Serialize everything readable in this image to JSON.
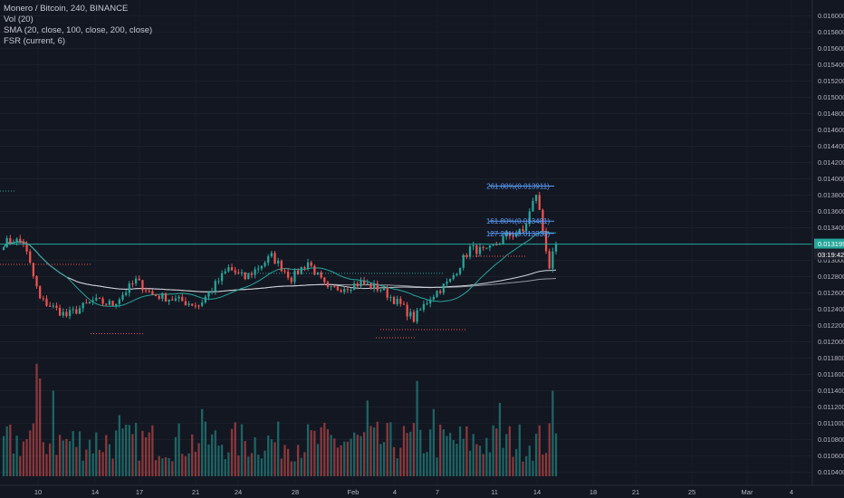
{
  "legend": {
    "symbol": "Monero / Bitcoin, 240, BINANCE",
    "volume": "Vol (20)",
    "sma": "SMA (20, close, 100, close, 200, close)",
    "fsr": "FSR (current, 6)"
  },
  "colors": {
    "background": "#131722",
    "up": "#26a69a",
    "down": "#ef5350",
    "sma_fast": "#26a69a",
    "sma_mid": "#d1d4dc",
    "sma_slow": "#9598a1",
    "fib": "#5b9cf6",
    "price_line": "#26a69a"
  },
  "price_axis": {
    "labels": [
      "0.016000",
      "0.015800",
      "0.015600",
      "0.015400",
      "0.015200",
      "0.015000",
      "0.014800",
      "0.014600",
      "0.014400",
      "0.014200",
      "0.014000",
      "0.013800",
      "0.013600",
      "0.013400",
      "0.013200",
      "0.013000",
      "0.012800",
      "0.012600",
      "0.012400",
      "0.012200",
      "0.012000",
      "0.011800",
      "0.011600",
      "0.011400",
      "0.011200",
      "0.011000",
      "0.010800",
      "0.010600",
      "0.010400"
    ],
    "current_price": "0.013199",
    "countdown": "03:19:42"
  },
  "time_axis": [
    "10",
    "14",
    "17",
    "21",
    "24",
    "28",
    "Feb",
    "4",
    "7",
    "11",
    "14",
    "18",
    "21",
    "25",
    "Mar",
    "4"
  ],
  "fib_levels": [
    {
      "label": "261.80%(0.013911)",
      "value": 0.013911
    },
    {
      "label": "161.80%(0.013481)",
      "value": 0.013481
    },
    {
      "label": "127.20%(0.013330)",
      "value": 0.01333
    }
  ],
  "chart_data": {
    "type": "candlestick",
    "title": "Monero / Bitcoin, 240, BINANCE",
    "y_range": [
      0.0103,
      0.0161
    ],
    "current_price": 0.013199,
    "note_shape": "XMR/BTC 4h: drop from ~0.01330 near Jan 9 to ~0.01230, range 0.01225-0.01310 through early Feb, dip to ~0.01220 near Feb 4, rally to ~0.01320 by Feb 8, spike to ~0.01390 around Feb 13, pullback to ~0.01290, close 0.013199",
    "segments": [
      {
        "from": 0.0132,
        "to": 0.01325,
        "bars": 4
      },
      {
        "from": 0.01325,
        "to": 0.01322,
        "bars": 3
      },
      {
        "from": 0.01322,
        "to": 0.01252,
        "bars": 5
      },
      {
        "from": 0.01252,
        "to": 0.01232,
        "bars": 8
      },
      {
        "from": 0.01232,
        "to": 0.0125,
        "bars": 8
      },
      {
        "from": 0.0125,
        "to": 0.01246,
        "bars": 6
      },
      {
        "from": 0.01246,
        "to": 0.01275,
        "bars": 7
      },
      {
        "from": 0.01275,
        "to": 0.01258,
        "bars": 5
      },
      {
        "from": 0.01258,
        "to": 0.01245,
        "bars": 14
      },
      {
        "from": 0.01245,
        "to": 0.0129,
        "bars": 9
      },
      {
        "from": 0.0129,
        "to": 0.01278,
        "bars": 5
      },
      {
        "from": 0.01278,
        "to": 0.01305,
        "bars": 8
      },
      {
        "from": 0.01305,
        "to": 0.01278,
        "bars": 6
      },
      {
        "from": 0.01278,
        "to": 0.01298,
        "bars": 5
      },
      {
        "from": 0.01298,
        "to": 0.01263,
        "bars": 6
      },
      {
        "from": 0.01263,
        "to": 0.01272,
        "bars": 10
      },
      {
        "from": 0.01272,
        "to": 0.01265,
        "bars": 6
      },
      {
        "from": 0.01265,
        "to": 0.01245,
        "bars": 6
      },
      {
        "from": 0.01245,
        "to": 0.01228,
        "bars": 4
      },
      {
        "from": 0.01228,
        "to": 0.01255,
        "bars": 5
      },
      {
        "from": 0.01255,
        "to": 0.01275,
        "bars": 6
      },
      {
        "from": 0.01275,
        "to": 0.01315,
        "bars": 6
      },
      {
        "from": 0.01315,
        "to": 0.0131,
        "bars": 5
      },
      {
        "from": 0.0131,
        "to": 0.0133,
        "bars": 6
      },
      {
        "from": 0.0133,
        "to": 0.01335,
        "bars": 5
      },
      {
        "from": 0.01335,
        "to": 0.01382,
        "bars": 4
      },
      {
        "from": 0.01382,
        "to": 0.01292,
        "bars": 4
      },
      {
        "from": 0.01292,
        "to": 0.01319,
        "bars": 2
      }
    ],
    "volume": {
      "min": 0.01035,
      "max": 0.01185
    }
  }
}
